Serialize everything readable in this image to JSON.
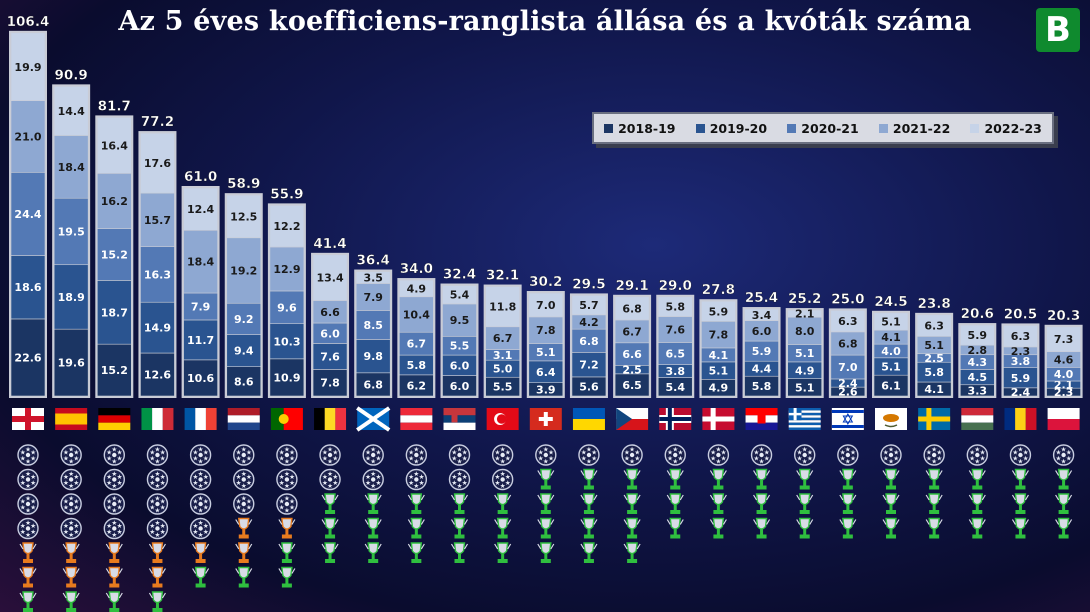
{
  "title": "Az 5 éves koefficiens-ranglista állása és a kvóták száma",
  "logo_letter": "B",
  "chart_data": {
    "type": "bar",
    "stacked": true,
    "title": "Az 5 éves koefficiens-ranglista állása és a kvóták száma",
    "legend_position": "top-right",
    "colors": [
      "#1b3563",
      "#2a5490",
      "#5379b5",
      "#8ea8d2",
      "#c6d3e8"
    ],
    "categories": [
      "England",
      "Spain",
      "Germany",
      "Italy",
      "France",
      "Netherlands",
      "Portugal",
      "Belgium",
      "Scotland",
      "Austria",
      "Serbia",
      "Turkey",
      "Switzerland",
      "Ukraine",
      "Czech Republic",
      "Norway",
      "Denmark",
      "Croatia",
      "Greece",
      "Israel",
      "Cyprus",
      "Sweden",
      "Hungary",
      "Romania",
      "Poland"
    ],
    "flags": [
      "england",
      "spain",
      "germany",
      "italy",
      "france",
      "netherlands",
      "portugal",
      "belgium",
      "scotland",
      "austria",
      "serbia",
      "turkey",
      "switzerland",
      "ukraine",
      "czech",
      "norway",
      "denmark",
      "croatia",
      "greece",
      "israel",
      "cyprus",
      "sweden",
      "hungary",
      "romania",
      "poland"
    ],
    "totals": [
      "106.4",
      "90.9",
      "81.7",
      "77.2",
      "61.0",
      "58.9",
      "55.9",
      "41.4",
      "36.4",
      "34.0",
      "32.4",
      "32.1",
      "30.2",
      "29.5",
      "29.1",
      "29.0",
      "27.8",
      "25.4",
      "25.2",
      "25.0",
      "24.5",
      "23.8",
      "20.6",
      "20.5",
      "20.3"
    ],
    "series": [
      {
        "name": "2018-19",
        "values": [
          22.6,
          19.6,
          15.2,
          12.6,
          10.6,
          8.6,
          10.9,
          7.8,
          6.8,
          6.2,
          6.0,
          5.5,
          3.9,
          5.6,
          6.5,
          5.4,
          4.9,
          5.8,
          5.1,
          2.6,
          6.1,
          4.1,
          3.3,
          2.4,
          2.3
        ]
      },
      {
        "name": "2019-20",
        "values": [
          18.6,
          18.9,
          18.7,
          14.9,
          11.7,
          9.4,
          10.3,
          7.6,
          9.8,
          5.8,
          6.0,
          5.0,
          6.4,
          7.2,
          2.5,
          3.8,
          5.1,
          4.4,
          4.9,
          2.4,
          5.1,
          5.8,
          4.5,
          5.9,
          2.1
        ]
      },
      {
        "name": "2020-21",
        "values": [
          24.4,
          19.5,
          15.2,
          16.3,
          7.9,
          9.2,
          9.6,
          6.0,
          8.5,
          6.7,
          5.5,
          3.1,
          5.1,
          6.8,
          6.6,
          6.5,
          4.1,
          5.9,
          5.1,
          7.0,
          4.0,
          2.5,
          4.3,
          3.8,
          4.0
        ]
      },
      {
        "name": "2021-22",
        "values": [
          21.0,
          18.4,
          16.2,
          15.7,
          18.4,
          19.2,
          12.9,
          6.6,
          7.9,
          10.4,
          9.5,
          6.7,
          7.8,
          4.2,
          6.7,
          7.6,
          7.8,
          6.0,
          8.0,
          6.8,
          4.1,
          5.1,
          2.8,
          2.3,
          4.6
        ]
      },
      {
        "name": "2022-23",
        "values": [
          19.9,
          14.4,
          16.4,
          17.6,
          12.4,
          12.5,
          12.2,
          13.4,
          3.5,
          4.9,
          5.4,
          11.8,
          7.0,
          5.7,
          6.8,
          5.8,
          5.9,
          3.4,
          2.1,
          6.3,
          5.1,
          6.3,
          5.9,
          6.3,
          7.3
        ]
      }
    ],
    "quota_icons": [
      [
        "cl",
        "cl",
        "cl",
        "cl",
        "el",
        "el",
        "ecl"
      ],
      [
        "cl",
        "cl",
        "cl",
        "cl",
        "el",
        "el",
        "ecl"
      ],
      [
        "cl",
        "cl",
        "cl",
        "cl",
        "el",
        "el",
        "ecl"
      ],
      [
        "cl",
        "cl",
        "cl",
        "cl",
        "el",
        "el",
        "ecl"
      ],
      [
        "cl",
        "cl",
        "cl",
        "cl",
        "el",
        "ecl"
      ],
      [
        "cl",
        "cl",
        "cl",
        "el",
        "el",
        "ecl"
      ],
      [
        "cl",
        "cl",
        "cl",
        "el",
        "ecl",
        "ecl"
      ],
      [
        "cl",
        "cl",
        "ecl",
        "ecl",
        "ecl"
      ],
      [
        "cl",
        "cl",
        "ecl",
        "ecl",
        "ecl"
      ],
      [
        "cl",
        "cl",
        "ecl",
        "ecl",
        "ecl"
      ],
      [
        "cl",
        "cl",
        "ecl",
        "ecl",
        "ecl"
      ],
      [
        "cl",
        "cl",
        "ecl",
        "ecl",
        "ecl"
      ],
      [
        "cl",
        "ecl",
        "ecl",
        "ecl",
        "ecl"
      ],
      [
        "cl",
        "ecl",
        "ecl",
        "ecl",
        "ecl"
      ],
      [
        "cl",
        "ecl",
        "ecl",
        "ecl",
        "ecl"
      ],
      [
        "cl",
        "ecl",
        "ecl",
        "ecl"
      ],
      [
        "cl",
        "ecl",
        "ecl",
        "ecl"
      ],
      [
        "cl",
        "ecl",
        "ecl",
        "ecl"
      ],
      [
        "cl",
        "ecl",
        "ecl",
        "ecl"
      ],
      [
        "cl",
        "ecl",
        "ecl",
        "ecl"
      ],
      [
        "cl",
        "ecl",
        "ecl",
        "ecl"
      ],
      [
        "cl",
        "ecl",
        "ecl",
        "ecl"
      ],
      [
        "cl",
        "ecl",
        "ecl",
        "ecl"
      ],
      [
        "cl",
        "ecl",
        "ecl",
        "ecl"
      ],
      [
        "cl",
        "ecl",
        "ecl",
        "ecl"
      ]
    ]
  }
}
